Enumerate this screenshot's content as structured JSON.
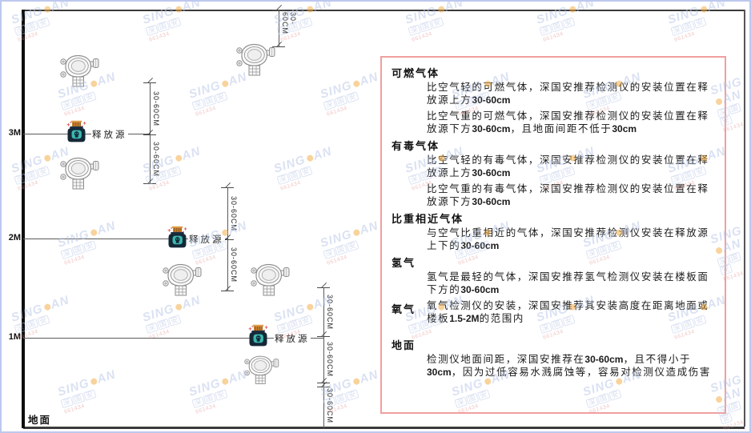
{
  "watermark": {
    "brand_left": "SING",
    "brand_right": "AN",
    "company": "深国安",
    "code": "661434"
  },
  "diagram": {
    "axis": {
      "m3": "3M",
      "m2": "2M",
      "m1": "1M",
      "ground": "地面"
    },
    "release_source_label": "释放源",
    "dimension_label": "30-60CM"
  },
  "panel": {
    "sections": [
      {
        "title": "可燃气体",
        "paragraphs": [
          "比空气轻的可燃气体，深国安推荐检测仪的安装位置在释放源上方30-60cm",
          "比空气重的可燃气体，深国安推荐检测仪的安装位置在释放源下方30-60cm，且地面间距不低于30cm"
        ]
      },
      {
        "title": "有毒气体",
        "paragraphs": [
          "比空气轻的有毒气体，深国安推荐检测仪的安装位置在释放源上方30-60cm",
          "比空气重的有毒气体，深国安推荐检测仪的安装位置在释放源下方30-60cm"
        ]
      },
      {
        "title": "比重相近气体",
        "paragraphs": [
          "与空气比重相近的气体，深国安推荐检测仪安装在释放源上下的30-60cm"
        ]
      },
      {
        "title": "氢气",
        "paragraphs": [
          "氢气是最轻的气体，深国安推荐氢气检测仪安装在楼板面下方的30-60cm"
        ]
      },
      {
        "title": "氧气",
        "paragraphs": [
          "氧气检测仪的安装，深国安推荐其安装高度在距离地面或楼板1.5-2M的范围内"
        ]
      },
      {
        "title": "地面",
        "paragraphs": [
          "检测仪地面间距，深国安推荐在30-60cm，且不得小于30cm，因为过低容易水溅腐蚀等，容易对检测仪造成伤害"
        ]
      }
    ]
  },
  "colors": {
    "panel_border": "#f09f9f",
    "watermark_blue": "#b6c5e6",
    "watermark_orange": "#f2a93c",
    "watermark_red": "#e39090",
    "source_cap": "#c8812f",
    "source_body": "#152838",
    "source_screen": "#3cb8ad"
  }
}
